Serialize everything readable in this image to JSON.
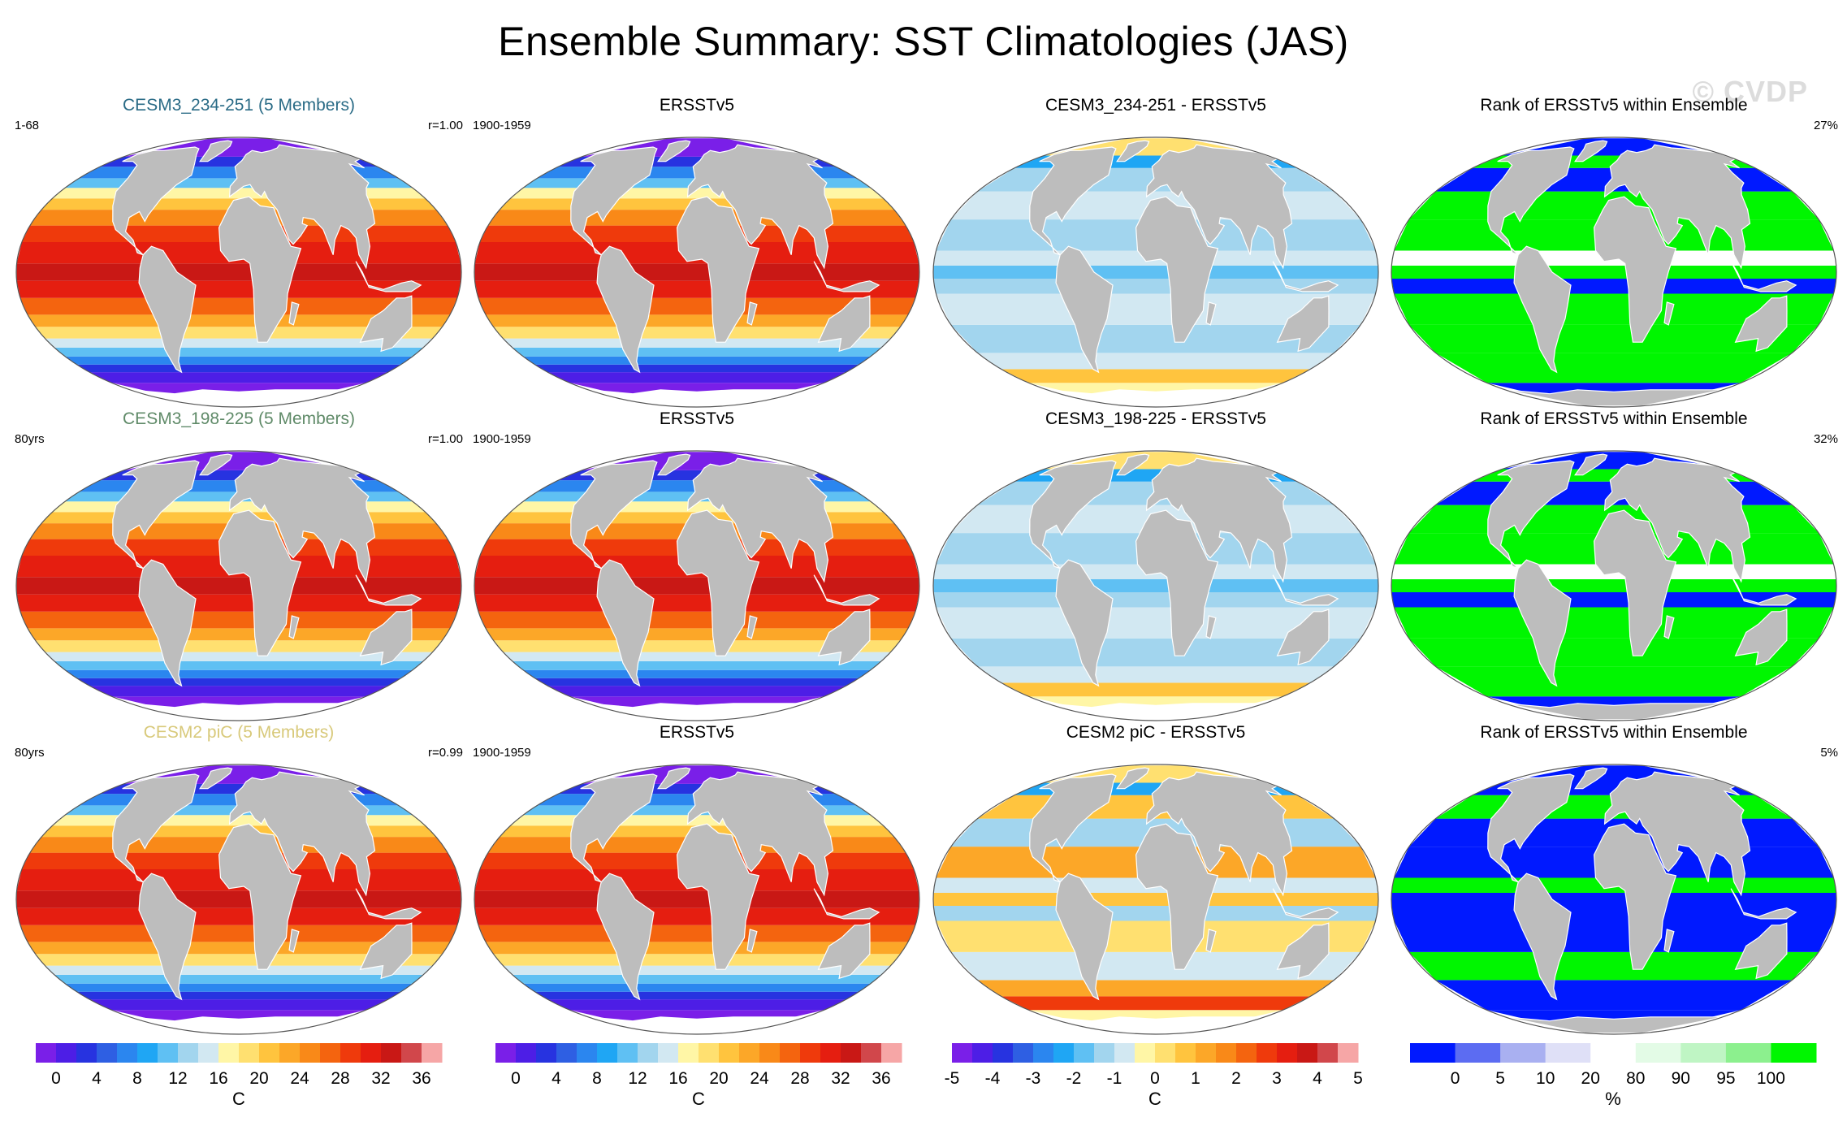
{
  "title": "Ensemble Summary: SST Climatologies (JAS)",
  "watermark": "© CVDP",
  "colors": {
    "ocean_land": "#bdbdbd",
    "antarctic": "#ffffff",
    "model1_title": "#2a6b86",
    "model2_title": "#5f8a68",
    "model3_title": "#d8c97a"
  },
  "rows": [
    {
      "model": {
        "title": "CESM3_234-251 (5 Members)",
        "left": "1-68",
        "right": "r=1.00",
        "title_color": "#2a6b86"
      },
      "obs": {
        "title": "ERSSTv5",
        "left": "1900-1959"
      },
      "diff": {
        "title": "CESM3_234-251 - ERSSTv5"
      },
      "rank": {
        "title": "Rank of ERSSTv5 within Ensemble",
        "right": "27%"
      }
    },
    {
      "model": {
        "title": "CESM3_198-225 (5 Members)",
        "left": "80yrs",
        "right": "r=1.00",
        "title_color": "#5f8a68"
      },
      "obs": {
        "title": "ERSSTv5",
        "left": "1900-1959"
      },
      "diff": {
        "title": "CESM3_198-225 - ERSSTv5"
      },
      "rank": {
        "title": "Rank of ERSSTv5 within Ensemble",
        "right": "32%"
      }
    },
    {
      "model": {
        "title": "CESM2 piC (5 Members)",
        "left": "80yrs",
        "right": "r=0.99",
        "title_color": "#d8c97a"
      },
      "obs": {
        "title": "ERSSTv5",
        "left": "1900-1959"
      },
      "diff": {
        "title": "CESM2 piC - ERSSTv5"
      },
      "rank": {
        "title": "Rank of ERSSTv5 within Ensemble",
        "right": "5%"
      }
    }
  ],
  "colorbars": [
    {
      "name": "sst",
      "unit": "C",
      "colors": [
        "#7a1fe8",
        "#4d1ee6",
        "#2733e0",
        "#2e5fe3",
        "#2b86ef",
        "#1fa6f4",
        "#5fc0f3",
        "#a2d5ee",
        "#d2e8f2",
        "#fff6a6",
        "#ffe070",
        "#ffc43e",
        "#fca728",
        "#f98918",
        "#f4640f",
        "#ef3a0c",
        "#e51e10",
        "#c91815",
        "#d1474b",
        "#f6a6a6"
      ],
      "tick_labels": [
        "0",
        "4",
        "8",
        "12",
        "16",
        "20",
        "24",
        "28",
        "32",
        "36"
      ],
      "tick_positions": [
        1,
        3,
        5,
        7,
        9,
        11,
        13,
        15,
        17,
        19
      ]
    },
    {
      "name": "sst-obs",
      "unit": "C",
      "colors": [
        "#7a1fe8",
        "#4d1ee6",
        "#2733e0",
        "#2e5fe3",
        "#2b86ef",
        "#1fa6f4",
        "#5fc0f3",
        "#a2d5ee",
        "#d2e8f2",
        "#fff6a6",
        "#ffe070",
        "#ffc43e",
        "#fca728",
        "#f98918",
        "#f4640f",
        "#ef3a0c",
        "#e51e10",
        "#c91815",
        "#d1474b",
        "#f6a6a6"
      ],
      "tick_labels": [
        "0",
        "4",
        "8",
        "12",
        "16",
        "20",
        "24",
        "28",
        "32",
        "36"
      ],
      "tick_positions": [
        1,
        3,
        5,
        7,
        9,
        11,
        13,
        15,
        17,
        19
      ]
    },
    {
      "name": "diff",
      "unit": "C",
      "colors": [
        "#7a1fe8",
        "#4d1ee6",
        "#2733e0",
        "#2e5fe3",
        "#2b86ef",
        "#1fa6f4",
        "#5fc0f3",
        "#a2d5ee",
        "#d2e8f2",
        "#fff6a6",
        "#ffe070",
        "#ffc43e",
        "#fca728",
        "#f98918",
        "#f4640f",
        "#ef3a0c",
        "#e51e10",
        "#c91815",
        "#d1474b",
        "#f6a6a6"
      ],
      "tick_labels": [
        "-5",
        "-4",
        "-3",
        "-2",
        "-1",
        "0",
        "1",
        "2",
        "3",
        "4",
        "5"
      ],
      "tick_positions": [
        0,
        2,
        4,
        6,
        8,
        10,
        12,
        14,
        16,
        18,
        20
      ]
    },
    {
      "name": "rank",
      "unit": "%",
      "colors": [
        "#0019ff",
        "#5c6cf2",
        "#a9b0f1",
        "#dfe0f7",
        "#ffffff",
        "#e3fbe6",
        "#bff5c4",
        "#8cf08e",
        "#00f600"
      ],
      "tick_labels": [
        "0",
        "5",
        "10",
        "20",
        "80",
        "90",
        "95",
        "100"
      ],
      "tick_positions": [
        1,
        2,
        3,
        4,
        5,
        6,
        7,
        8
      ]
    }
  ]
}
